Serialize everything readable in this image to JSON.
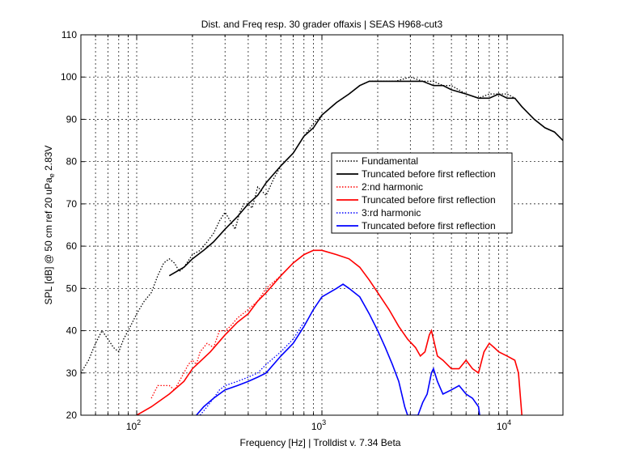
{
  "chart_data": {
    "type": "line",
    "title": "Dist. and Freq resp. 30 grader offaxis | SEAS H968-cut3",
    "xlabel": "Frequency [Hz] | Trolldist v. 7.34 Beta",
    "ylabel_main": "SPL [dB] @ 50 cm ref 20 uPa",
    "ylabel_sub": "e",
    "ylabel_tail": " 2.83V",
    "xscale": "log",
    "xlim": [
      50,
      20000
    ],
    "ylim": [
      20,
      110
    ],
    "yticks": [
      20,
      30,
      40,
      50,
      60,
      70,
      80,
      90,
      100,
      110
    ],
    "xticks": [
      {
        "value": 100,
        "base": "10",
        "exp": "2"
      },
      {
        "value": 1000,
        "base": "10",
        "exp": "3"
      },
      {
        "value": 10000,
        "base": "10",
        "exp": "4"
      }
    ],
    "grid": true,
    "legend_position": "center-right",
    "series": [
      {
        "name": "Fundamental",
        "color": "#000000",
        "style": "dotted",
        "points": [
          [
            50,
            30
          ],
          [
            55,
            33
          ],
          [
            60,
            37
          ],
          [
            65,
            40
          ],
          [
            70,
            38
          ],
          [
            75,
            36
          ],
          [
            80,
            35
          ],
          [
            85,
            38
          ],
          [
            90,
            40
          ],
          [
            95,
            42
          ],
          [
            100,
            44
          ],
          [
            110,
            47
          ],
          [
            120,
            49
          ],
          [
            130,
            53
          ],
          [
            140,
            56
          ],
          [
            150,
            57
          ],
          [
            160,
            56
          ],
          [
            170,
            54
          ],
          [
            180,
            55
          ],
          [
            200,
            58
          ],
          [
            220,
            59
          ],
          [
            240,
            61
          ],
          [
            260,
            63
          ],
          [
            280,
            66
          ],
          [
            300,
            68
          ],
          [
            320,
            66
          ],
          [
            340,
            64
          ],
          [
            360,
            68
          ],
          [
            380,
            70
          ],
          [
            400,
            70
          ],
          [
            420,
            69
          ],
          [
            450,
            74
          ],
          [
            500,
            72
          ],
          [
            550,
            76
          ],
          [
            600,
            79
          ],
          [
            700,
            82
          ],
          [
            800,
            86
          ],
          [
            900,
            89
          ],
          [
            1000,
            91
          ],
          [
            1200,
            94
          ],
          [
            1400,
            96
          ],
          [
            1600,
            98
          ],
          [
            1800,
            99
          ],
          [
            2000,
            99
          ],
          [
            2500,
            99
          ],
          [
            3000,
            100
          ],
          [
            3500,
            99
          ],
          [
            4000,
            99
          ],
          [
            4500,
            98
          ],
          [
            5000,
            98
          ],
          [
            6000,
            96
          ],
          [
            7000,
            95
          ],
          [
            8000,
            96
          ],
          [
            9000,
            96
          ],
          [
            10000,
            96
          ],
          [
            11000,
            95
          ],
          [
            12000,
            93
          ],
          [
            14000,
            90
          ],
          [
            16000,
            88
          ],
          [
            18000,
            87
          ],
          [
            20000,
            85
          ]
        ]
      },
      {
        "name": "Truncated before first reflection",
        "color": "#000000",
        "style": "solid",
        "points": [
          [
            150,
            53
          ],
          [
            180,
            55
          ],
          [
            200,
            57
          ],
          [
            230,
            59
          ],
          [
            260,
            61
          ],
          [
            300,
            64
          ],
          [
            350,
            67
          ],
          [
            400,
            70
          ],
          [
            450,
            72
          ],
          [
            500,
            75
          ],
          [
            600,
            79
          ],
          [
            700,
            82
          ],
          [
            800,
            86
          ],
          [
            900,
            88
          ],
          [
            1000,
            91
          ],
          [
            1200,
            94
          ],
          [
            1400,
            96
          ],
          [
            1600,
            98
          ],
          [
            1800,
            99
          ],
          [
            2000,
            99
          ],
          [
            2500,
            99
          ],
          [
            3000,
            99
          ],
          [
            3500,
            99
          ],
          [
            4000,
            98
          ],
          [
            4500,
            98
          ],
          [
            5000,
            97
          ],
          [
            6000,
            96
          ],
          [
            7000,
            95
          ],
          [
            8000,
            95
          ],
          [
            9000,
            96
          ],
          [
            10000,
            95
          ],
          [
            11000,
            95
          ],
          [
            12000,
            93
          ],
          [
            14000,
            90
          ],
          [
            16000,
            88
          ],
          [
            18000,
            87
          ],
          [
            20000,
            85
          ]
        ]
      },
      {
        "name": "2:nd harmonic",
        "color": "#ff0000",
        "style": "dotted",
        "points": [
          [
            120,
            24
          ],
          [
            130,
            27
          ],
          [
            140,
            27
          ],
          [
            150,
            27
          ],
          [
            160,
            26
          ],
          [
            170,
            28
          ],
          [
            180,
            30
          ],
          [
            190,
            32
          ],
          [
            200,
            33
          ],
          [
            210,
            32
          ],
          [
            220,
            35
          ],
          [
            240,
            37
          ],
          [
            260,
            36
          ],
          [
            280,
            40
          ],
          [
            300,
            40
          ],
          [
            320,
            41
          ],
          [
            350,
            43
          ],
          [
            400,
            45
          ],
          [
            450,
            47
          ],
          [
            500,
            50
          ],
          [
            600,
            53
          ],
          [
            700,
            56
          ],
          [
            800,
            58
          ],
          [
            900,
            59
          ]
        ]
      },
      {
        "name": "Truncated before first reflection",
        "color": "#ff0000",
        "style": "solid",
        "points": [
          [
            100,
            20
          ],
          [
            120,
            22
          ],
          [
            150,
            25
          ],
          [
            180,
            28
          ],
          [
            200,
            31
          ],
          [
            250,
            35
          ],
          [
            300,
            39
          ],
          [
            350,
            42
          ],
          [
            400,
            44
          ],
          [
            450,
            47
          ],
          [
            500,
            49
          ],
          [
            600,
            53
          ],
          [
            700,
            56
          ],
          [
            800,
            58
          ],
          [
            900,
            59
          ],
          [
            1000,
            59
          ],
          [
            1200,
            58
          ],
          [
            1400,
            57
          ],
          [
            1600,
            55
          ],
          [
            1800,
            52
          ],
          [
            2000,
            49
          ],
          [
            2300,
            45
          ],
          [
            2600,
            41
          ],
          [
            2900,
            38
          ],
          [
            3200,
            36
          ],
          [
            3400,
            34
          ],
          [
            3600,
            35
          ],
          [
            3800,
            39
          ],
          [
            3900,
            40
          ],
          [
            4000,
            38
          ],
          [
            4200,
            34
          ],
          [
            4500,
            33
          ],
          [
            5000,
            31
          ],
          [
            5500,
            31
          ],
          [
            6000,
            33
          ],
          [
            6500,
            31
          ],
          [
            7000,
            30
          ],
          [
            7500,
            35
          ],
          [
            8000,
            37
          ],
          [
            8500,
            36
          ],
          [
            9000,
            35
          ],
          [
            10000,
            34
          ],
          [
            11000,
            33
          ],
          [
            11500,
            30
          ],
          [
            12000,
            20
          ]
        ]
      },
      {
        "name": "3:rd harmonic",
        "color": "#0000ff",
        "style": "dotted",
        "points": [
          [
            220,
            20
          ],
          [
            240,
            22
          ],
          [
            260,
            24
          ],
          [
            280,
            26
          ],
          [
            300,
            27
          ],
          [
            350,
            28
          ],
          [
            400,
            29
          ],
          [
            450,
            30
          ],
          [
            500,
            32
          ],
          [
            600,
            35
          ],
          [
            700,
            38
          ],
          [
            800,
            42
          ]
        ]
      },
      {
        "name": "Truncated before first reflection",
        "color": "#0000ff",
        "style": "solid",
        "points": [
          [
            210,
            20
          ],
          [
            230,
            22
          ],
          [
            260,
            24
          ],
          [
            300,
            26
          ],
          [
            350,
            27
          ],
          [
            400,
            28
          ],
          [
            450,
            29
          ],
          [
            500,
            30
          ],
          [
            600,
            34
          ],
          [
            700,
            37
          ],
          [
            800,
            41
          ],
          [
            900,
            45
          ],
          [
            1000,
            48
          ],
          [
            1200,
            50
          ],
          [
            1300,
            51
          ],
          [
            1400,
            50
          ],
          [
            1600,
            48
          ],
          [
            1800,
            44
          ],
          [
            2000,
            40
          ],
          [
            2200,
            36
          ],
          [
            2400,
            32
          ],
          [
            2600,
            28
          ],
          [
            2800,
            22
          ],
          [
            2900,
            20
          ],
          [
            3300,
            20
          ],
          [
            3500,
            23
          ],
          [
            3700,
            25
          ],
          [
            3900,
            30
          ],
          [
            4000,
            31
          ],
          [
            4200,
            28
          ],
          [
            4500,
            25
          ],
          [
            5000,
            26
          ],
          [
            5500,
            27
          ],
          [
            6000,
            25
          ],
          [
            6500,
            24
          ],
          [
            7000,
            22
          ],
          [
            7100,
            20
          ]
        ]
      }
    ]
  }
}
